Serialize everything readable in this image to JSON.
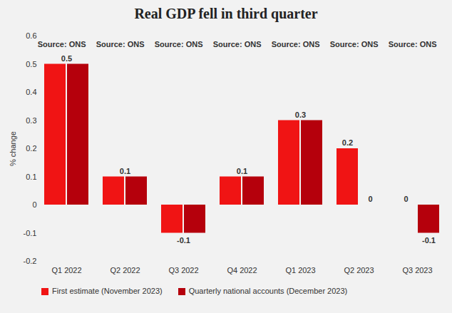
{
  "chart_data": {
    "type": "bar",
    "title": "Real GDP fell in third quarter",
    "source": "Source: ONS",
    "ylabel": "% change",
    "categories": [
      "Q1 2022",
      "Q2 2022",
      "Q3 2022",
      "Q4 2022",
      "Q1 2023",
      "Q2 2023",
      "Q3 2023"
    ],
    "series": [
      {
        "name": "First estimate (November 2023)",
        "color": "#f01414",
        "values": [
          0.5,
          0.1,
          -0.1,
          0.1,
          0.3,
          0.2,
          0
        ]
      },
      {
        "name": "Quarterly national accounts (December 2023)",
        "color": "#b5000c",
        "values": [
          0.5,
          0.1,
          -0.1,
          0.1,
          0.3,
          0,
          -0.1
        ]
      }
    ],
    "ylim": [
      -0.2,
      0.6
    ],
    "yticks": [
      -0.2,
      -0.1,
      0,
      0.1,
      0.2,
      0.3,
      0.4,
      0.5,
      0.6
    ],
    "grid": false,
    "data_labels": true,
    "legend": "bottom"
  }
}
